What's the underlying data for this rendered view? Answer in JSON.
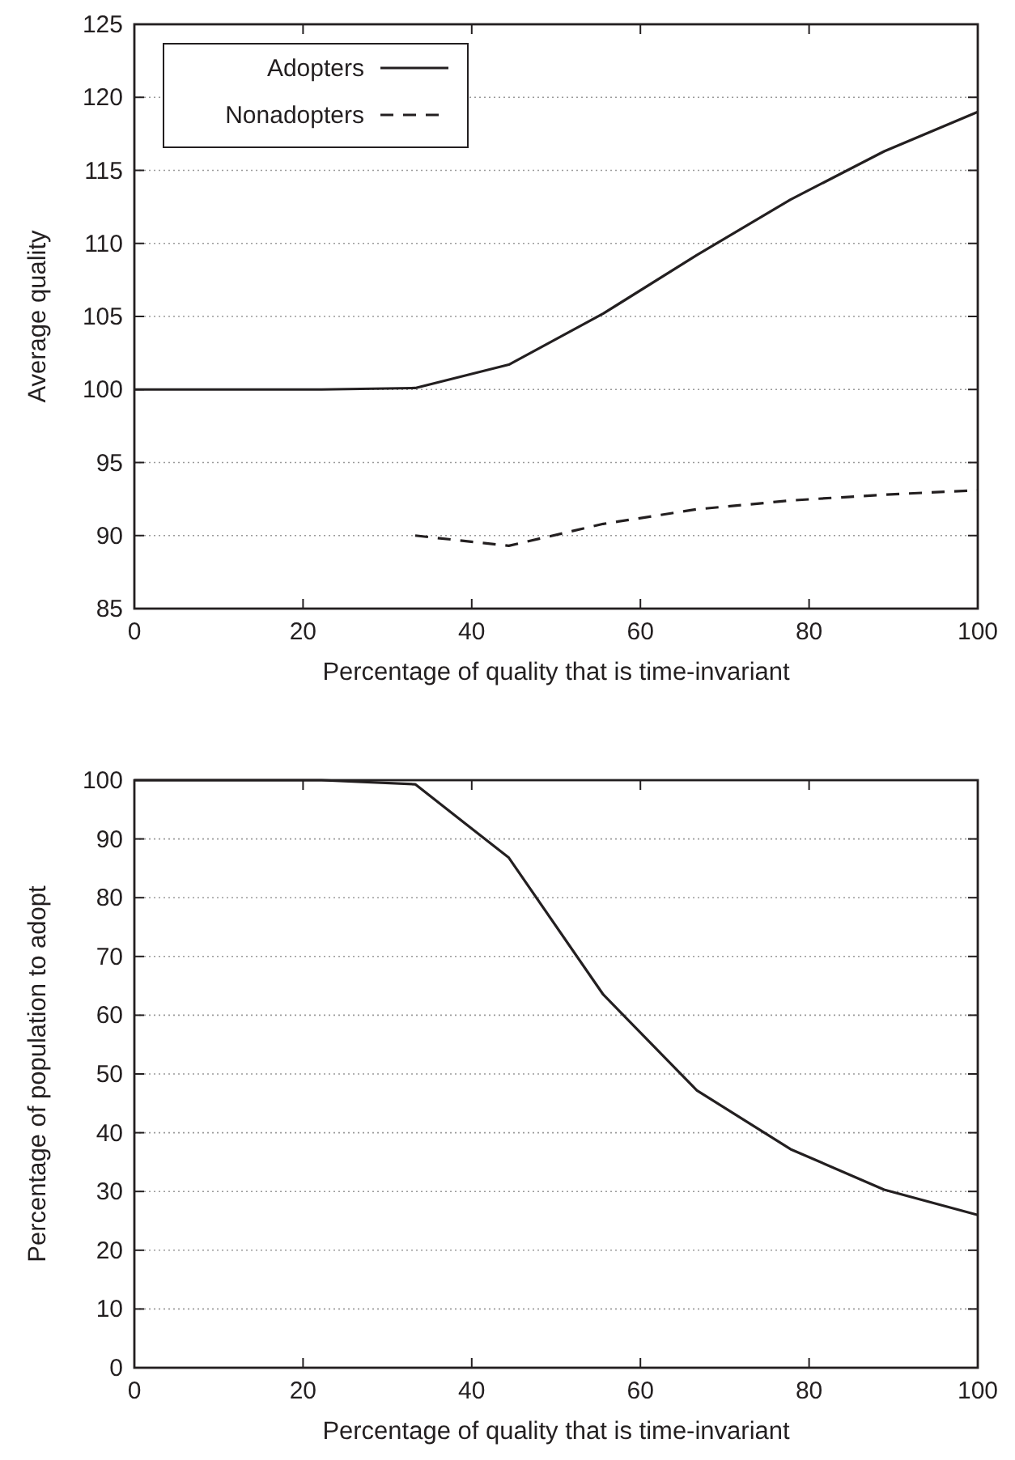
{
  "chart_data": [
    {
      "type": "line",
      "xlabel": "Percentage of quality that is time-invariant",
      "ylabel": "Average quality",
      "x": [
        0,
        11.1,
        22.2,
        33.3,
        44.4,
        55.6,
        66.7,
        77.8,
        88.9,
        100
      ],
      "xlim": [
        0,
        100
      ],
      "xticks": [
        0,
        20,
        40,
        60,
        80,
        100
      ],
      "ylim": [
        85,
        125
      ],
      "yticks": [
        85,
        90,
        95,
        100,
        105,
        110,
        115,
        120,
        125
      ],
      "grid": "y",
      "legend": "top left",
      "series": [
        {
          "name": "Adopters",
          "color": "#231f20",
          "line_style": "solid",
          "values": [
            100,
            100,
            100,
            100.1,
            101.7,
            105.2,
            109.2,
            113,
            116.3,
            119
          ]
        },
        {
          "name": "Nonadopters",
          "color": "#231f20",
          "line_style": "dashed",
          "values": [
            null,
            null,
            null,
            90,
            89.3,
            90.8,
            91.8,
            92.4,
            92.8,
            93.1
          ]
        }
      ]
    },
    {
      "type": "line",
      "xlabel": "Percentage of quality that is time-invariant",
      "ylabel": "Percentage of population to adopt",
      "x": [
        0,
        11.1,
        22.2,
        33.3,
        44.4,
        55.6,
        66.7,
        77.8,
        88.9,
        100
      ],
      "xlim": [
        0,
        100
      ],
      "xticks": [
        0,
        20,
        40,
        60,
        80,
        100
      ],
      "ylim": [
        0,
        100
      ],
      "yticks": [
        0,
        10,
        20,
        30,
        40,
        50,
        60,
        70,
        80,
        90,
        100
      ],
      "grid": "y",
      "legend": false,
      "series": [
        {
          "color": "#231f20",
          "line_style": "solid",
          "values": [
            100,
            100,
            100,
            99.3,
            86.8,
            63.5,
            47.2,
            37.2,
            30.3,
            26
          ]
        }
      ]
    }
  ]
}
